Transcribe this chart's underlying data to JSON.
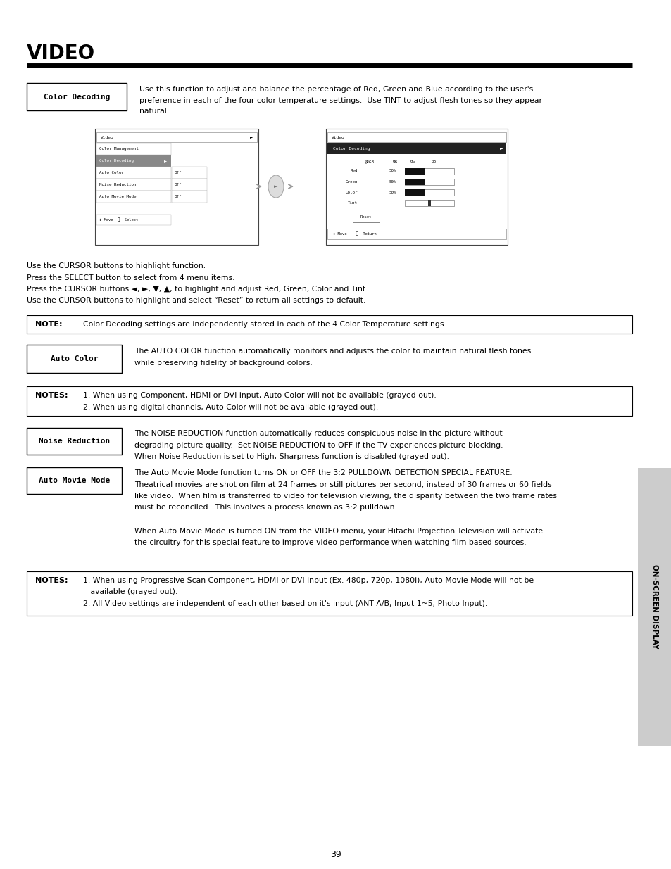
{
  "title": "VIDEO",
  "page_number": "39",
  "bg_color": "#ffffff",
  "sidebar_text": "ON-SCREEN DISPLAY",
  "sidebar_bg": "#cccccc",
  "sidebar_text_color": "#000000",
  "sections": [
    {
      "type": "label_desc",
      "label": "Color Decoding",
      "desc": "Use this function to adjust and balance the percentage of Red, Green and Blue according to the user's\npreference in each of the four color temperature settings.  Use TINT to adjust flesh tones so they appear\nnatural."
    },
    {
      "type": "bullets",
      "lines": [
        "Use the CURSOR buttons to highlight function.",
        "Press the SELECT button to select from 4 menu items.",
        "Press the CURSOR buttons ◄, ►, ▼, ▲, to highlight and adjust Red, Green, Color and Tint.",
        "Use the CURSOR buttons to highlight and select “Reset” to return all settings to default."
      ]
    },
    {
      "type": "note_box",
      "label": "NOTE:",
      "text": "Color Decoding settings are independently stored in each of the 4 Color Temperature settings."
    },
    {
      "type": "label_desc",
      "label": "Auto Color",
      "desc": "The AUTO COLOR function automatically monitors and adjusts the color to maintain natural flesh tones\nwhile preserving fidelity of background colors."
    },
    {
      "type": "note_box",
      "label": "NOTES:",
      "lines": [
        "1. When using Component, HDMI or DVI input, Auto Color will not be available (grayed out).",
        "2. When using digital channels, Auto Color will not be available (grayed out)."
      ]
    },
    {
      "type": "label_desc",
      "label": "Noise Reduction",
      "desc": "The NOISE REDUCTION function automatically reduces conspicuous noise in the picture without\ndegrading picture quality.  Set NOISE REDUCTION to OFF if the TV experiences picture blocking.\nWhen Noise Reduction is set to High, Sharpness function is disabled (grayed out)."
    },
    {
      "type": "label_desc",
      "label": "Auto Movie Mode",
      "desc": "The Auto Movie Mode function turns ON or OFF the 3:2 PULLDOWN DETECTION SPECIAL FEATURE.\nTheatrical movies are shot on film at 24 frames or still pictures per second, instead of 30 frames or 60 fields\nlike video.  When film is transferred to video for television viewing, the disparity between the two frame rates\nmust be reconciled.  This involves a process known as 3:2 pulldown.\n\nWhen Auto Movie Mode is turned ON from the VIDEO menu, your Hitachi Projection Television will activate\nthe circuitry for this special feature to improve video performance when watching film based sources."
    },
    {
      "type": "note_box",
      "label": "NOTES:",
      "lines": [
        "1. When using Progressive Scan Component, HDMI or DVI input (Ex. 480p, 720p, 1080i), Auto Movie Mode will not be",
        "   available (grayed out).",
        "2. All Video settings are independent of each other based on it's input (ANT A/B, Input 1~5, Photo Input)."
      ]
    }
  ]
}
